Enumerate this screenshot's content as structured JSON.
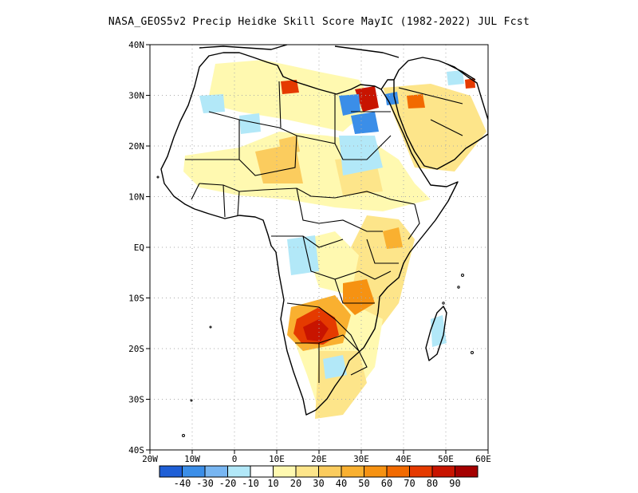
{
  "title": "NASA_GEOS5v2 Precip Heidke Skill Score MayIC (1982-2022) JUL Fcst",
  "map": {
    "lon_range": [
      -20,
      60
    ],
    "lat_range": [
      -40,
      40
    ],
    "lon_ticks": [
      "20W",
      "10W",
      "0",
      "10E",
      "20E",
      "30E",
      "40E",
      "50E",
      "60E"
    ],
    "lat_ticks": [
      "40N",
      "30N",
      "20N",
      "10N",
      "EQ",
      "10S",
      "20S",
      "30S",
      "40S"
    ],
    "grid": true
  },
  "colorbar": {
    "colors": [
      "#1f5fd6",
      "#3b8ee8",
      "#78b6f2",
      "#b2e8f8",
      "#ffffff",
      "#fff9b0",
      "#fde58a",
      "#fbcc5e",
      "#f9b030",
      "#f69212",
      "#f26a00",
      "#e53a00",
      "#c81400",
      "#a50000"
    ],
    "labels": [
      "-40",
      "-30",
      "-20",
      "-10",
      "10",
      "20",
      "30",
      "40",
      "50",
      "60",
      "70",
      "80",
      "90"
    ]
  }
}
